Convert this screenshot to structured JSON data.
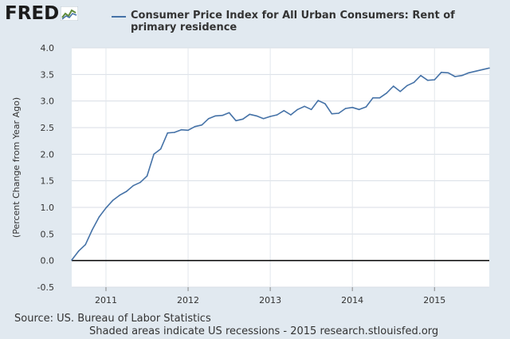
{
  "logo": {
    "text": "FRED",
    "icon": "fred-graph-icon"
  },
  "footer": {
    "source": "Source: US. Bureau of Labor Statistics",
    "note": "Shaded areas indicate US recessions - 2015 research.stlouisfed.org"
  },
  "colors": {
    "series": "#4572a7",
    "background": "#e1e9f0",
    "plot": "#ffffff",
    "grid": "#d0d8e0"
  },
  "chart_data": {
    "type": "line",
    "title": "",
    "xlabel": "",
    "ylabel": "(Percent Change from Year Ago)",
    "ylim": [
      -0.5,
      4.0
    ],
    "yticks": [
      "-0.5",
      "0.0",
      "0.5",
      "1.0",
      "1.5",
      "2.0",
      "2.5",
      "3.0",
      "3.5",
      "4.0"
    ],
    "xlim": [
      2010.583,
      2015.667
    ],
    "xticks": [
      {
        "value": 2011.0,
        "label": "2011"
      },
      {
        "value": 2012.0,
        "label": "2012"
      },
      {
        "value": 2013.0,
        "label": "2013"
      },
      {
        "value": 2014.0,
        "label": "2014"
      },
      {
        "value": 2015.0,
        "label": "2015"
      }
    ],
    "grid": true,
    "zero_line": true,
    "series": [
      {
        "name": "Consumer Price Index for All Urban Consumers: Rent of primary residence",
        "x": [
          2010.583,
          2010.667,
          2010.75,
          2010.833,
          2010.917,
          2011.0,
          2011.083,
          2011.167,
          2011.25,
          2011.333,
          2011.417,
          2011.5,
          2011.583,
          2011.667,
          2011.75,
          2011.833,
          2011.917,
          2012.0,
          2012.083,
          2012.167,
          2012.25,
          2012.333,
          2012.417,
          2012.5,
          2012.583,
          2012.667,
          2012.75,
          2012.833,
          2012.917,
          2013.0,
          2013.083,
          2013.167,
          2013.25,
          2013.333,
          2013.417,
          2013.5,
          2013.583,
          2013.667,
          2013.75,
          2013.833,
          2013.917,
          2014.0,
          2014.083,
          2014.167,
          2014.25,
          2014.333,
          2014.417,
          2014.5,
          2014.583,
          2014.667,
          2014.75,
          2014.833,
          2014.917,
          2015.0,
          2015.083,
          2015.167,
          2015.25,
          2015.333,
          2015.417,
          2015.5,
          2015.583,
          2015.667
        ],
        "values": [
          0.01,
          0.18,
          0.3,
          0.58,
          0.82,
          0.99,
          1.13,
          1.23,
          1.3,
          1.41,
          1.47,
          1.59,
          2.0,
          2.1,
          2.4,
          2.41,
          2.46,
          2.45,
          2.52,
          2.55,
          2.67,
          2.72,
          2.73,
          2.78,
          2.63,
          2.66,
          2.75,
          2.72,
          2.67,
          2.71,
          2.74,
          2.82,
          2.74,
          2.84,
          2.9,
          2.84,
          3.01,
          2.95,
          2.76,
          2.77,
          2.86,
          2.88,
          2.84,
          2.89,
          3.06,
          3.06,
          3.15,
          3.28,
          3.18,
          3.29,
          3.35,
          3.48,
          3.39,
          3.4,
          3.54,
          3.53,
          3.46,
          3.48,
          3.53,
          3.56,
          3.59,
          3.62
        ]
      }
    ]
  }
}
